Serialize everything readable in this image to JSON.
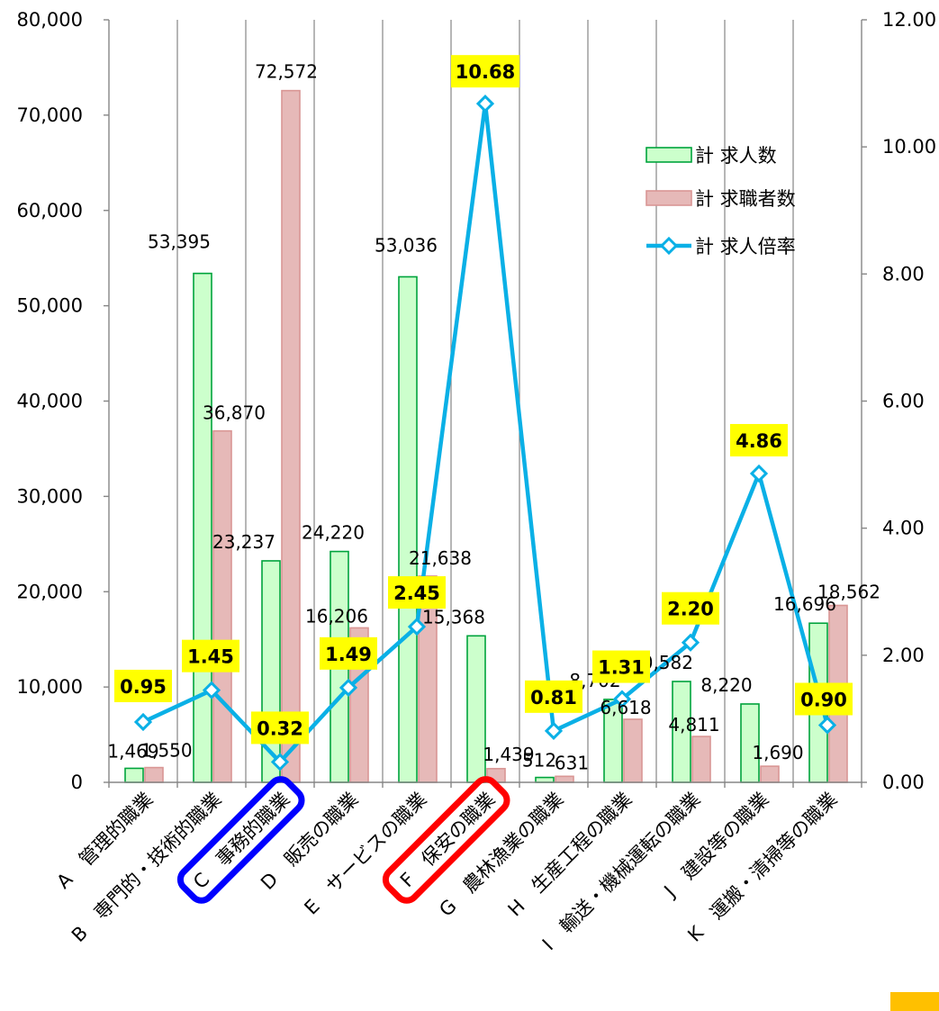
{
  "chart_data": {
    "type": "bar",
    "categories": [
      "A　管理的職業",
      "B　専門的・技術的職業",
      "C　事務的職業",
      "D　販売の職業",
      "E　サービスの職業",
      "F　保安の職業",
      "G　農林漁業の職業",
      "H　生産工程の職業",
      "I　輸送・機械運転の職業",
      "J　建設等の職業",
      "K　運搬・清掃等の職業"
    ],
    "series": [
      {
        "name": "計 求人数",
        "kind": "bar",
        "axis": "left",
        "fill": "#ccffcc",
        "stroke": "#00a33c",
        "values": [
          1469,
          53395,
          23237,
          24220,
          53036,
          15368,
          512,
          8702,
          10582,
          8220,
          16696
        ],
        "labels": [
          "1,469",
          "53,395",
          "23,237",
          "24,220",
          "53,036",
          "15,368",
          "512",
          "8,702",
          "10,582",
          "8,220",
          "16,696"
        ]
      },
      {
        "name": "計 求職者数",
        "kind": "bar",
        "axis": "left",
        "fill": "#e6b9b8",
        "stroke": "#d99694",
        "values": [
          1550,
          36870,
          72572,
          16206,
          21638,
          1439,
          631,
          6618,
          4811,
          1690,
          18562
        ],
        "labels": [
          "1,550",
          "36,870",
          "72,572",
          "16,206",
          "21,638",
          "1,439",
          "631",
          "6,618",
          "4,811",
          "1,690",
          "18,562"
        ]
      },
      {
        "name": "計 求人倍率",
        "kind": "line",
        "axis": "right",
        "color": "#0ab0e6",
        "values": [
          0.95,
          1.45,
          0.32,
          1.49,
          2.45,
          10.68,
          0.81,
          1.31,
          2.2,
          4.86,
          0.9
        ],
        "labels": [
          "0.95",
          "1.45",
          "0.32",
          "1.49",
          "2.45",
          "10.68",
          "0.81",
          "1.31",
          "2.20",
          "4.86",
          "0.90"
        ],
        "label_bg": "#ffff00"
      }
    ],
    "y_left": {
      "min": 0,
      "max": 80000,
      "step": 10000,
      "ticks": [
        "0",
        "10,000",
        "20,000",
        "30,000",
        "40,000",
        "50,000",
        "60,000",
        "70,000",
        "80,000"
      ]
    },
    "y_right": {
      "min": 0,
      "max": 12,
      "step": 2,
      "ticks": [
        "0.00",
        "2.00",
        "4.00",
        "6.00",
        "8.00",
        "10.00",
        "12.00"
      ]
    },
    "grid": "vertical",
    "legend": "top-right",
    "highlights": [
      {
        "category_index": 2,
        "color": "#0000ff"
      },
      {
        "category_index": 5,
        "color": "#ff0000"
      }
    ],
    "corner_swatch": "#ffc000"
  }
}
